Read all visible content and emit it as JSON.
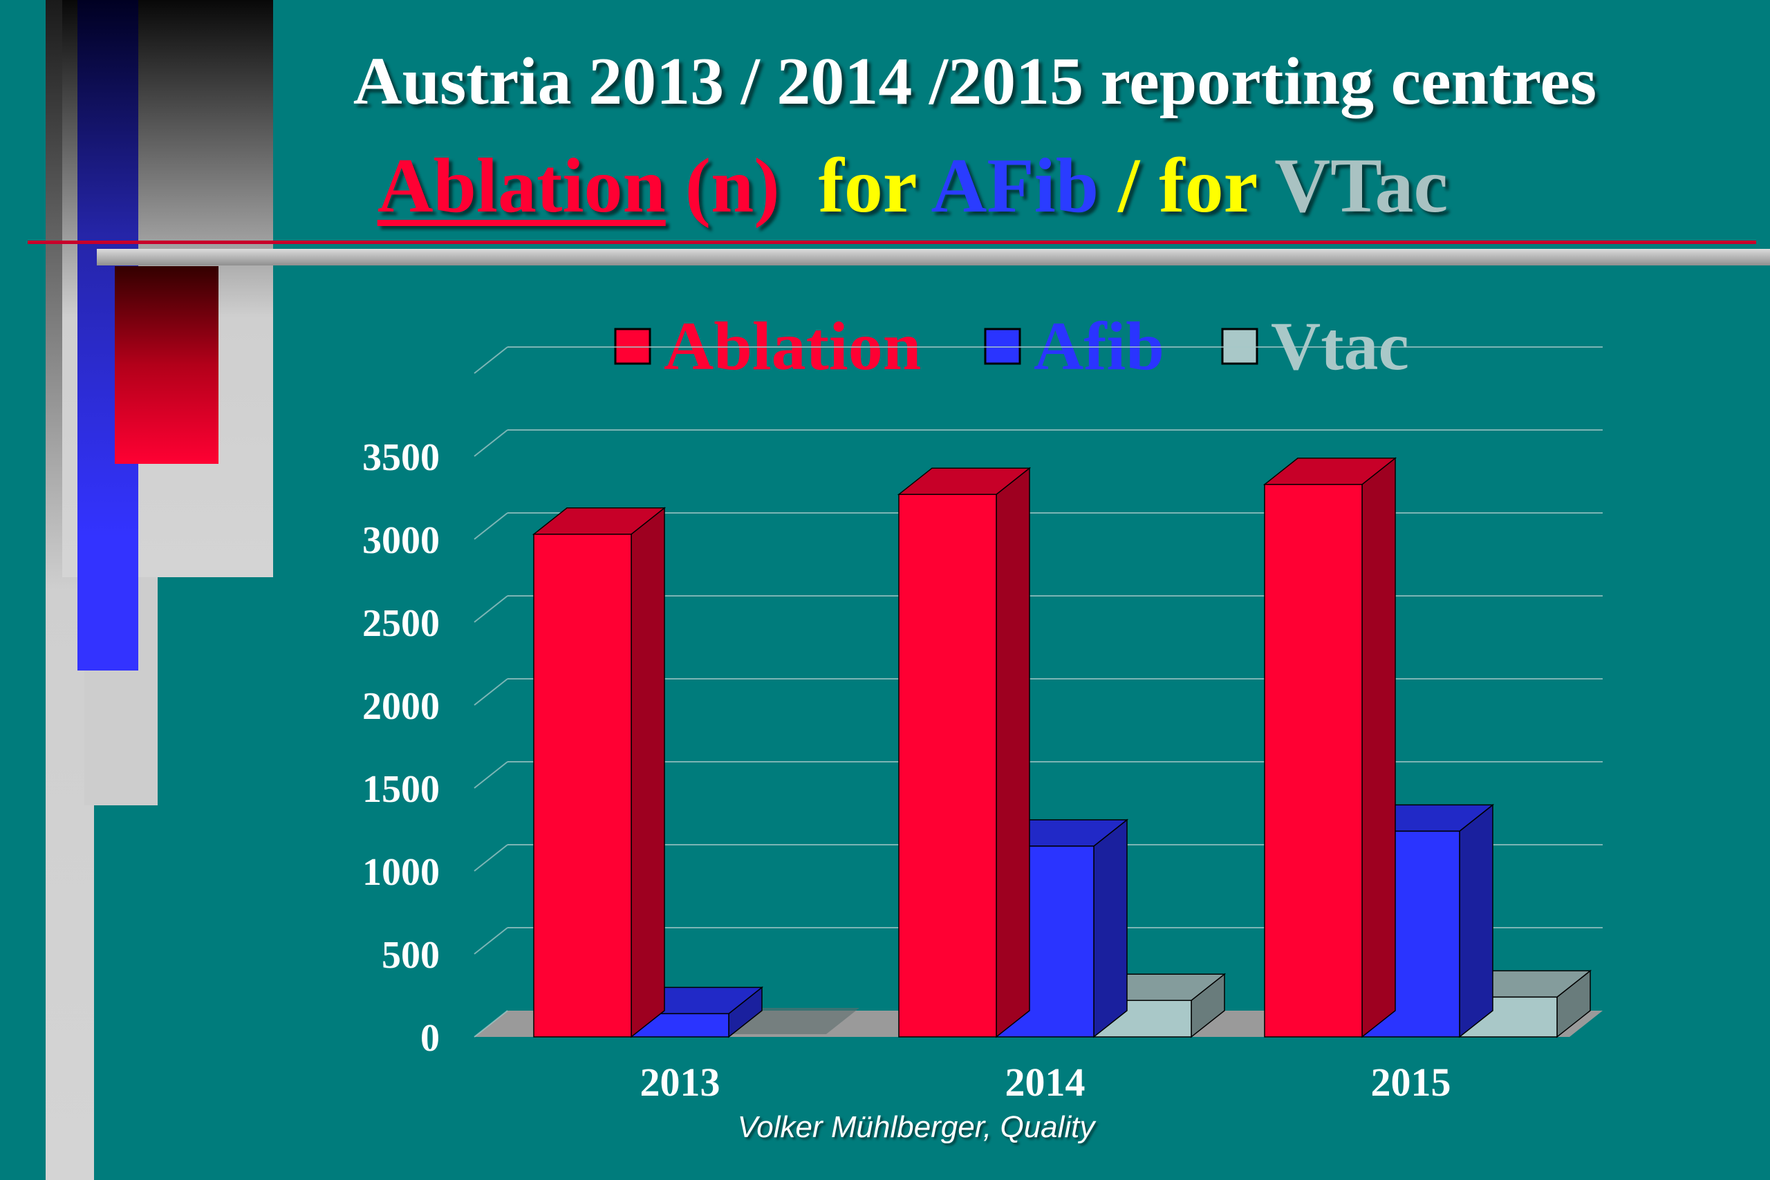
{
  "title": {
    "line1": "Austria 2013 / 2014 /2015 reporting centres",
    "line2": {
      "ablation": "Ablation",
      "n": "(n)",
      "for1": "for",
      "afib": "AFib",
      "sep": "/",
      "for2": "for",
      "vtac": "VTac"
    }
  },
  "footer": "Volker Mühlberger, Quality",
  "colors": {
    "background": "#007c7c",
    "ablation": "#ff0033",
    "afib": "#2a34ff",
    "vtac": "#a9c8c8",
    "floor": "#9a9a9a"
  },
  "chart_data": {
    "type": "bar",
    "categories": [
      "2013",
      "2014",
      "2015"
    ],
    "series": [
      {
        "name": "Ablation",
        "values": [
          3030,
          3270,
          3330
        ]
      },
      {
        "name": "Afib",
        "values": [
          140,
          1150,
          1240
        ]
      },
      {
        "name": "Vtac",
        "values": [
          0,
          220,
          240
        ]
      }
    ],
    "ylim": [
      0,
      3500
    ],
    "yticks": [
      0,
      500,
      1000,
      1500,
      2000,
      2500,
      3000,
      3500
    ],
    "grid": true,
    "legend": "top",
    "xlabel": "",
    "ylabel": ""
  }
}
